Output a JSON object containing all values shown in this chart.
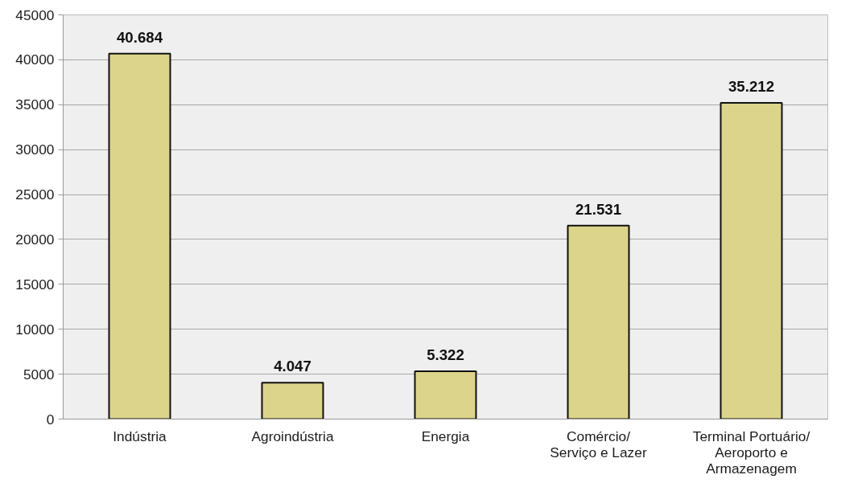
{
  "chart_data": {
    "type": "bar",
    "categories": [
      "Indústria",
      "Agroindústria",
      "Energia",
      "Comércio/\nServiço e Lazer",
      "Terminal Portuário/\nAeroporto e\nArmazenagem"
    ],
    "values": [
      40684,
      4047,
      5322,
      21531,
      35212
    ],
    "value_labels": [
      "40.684",
      "4.047",
      "5.322",
      "21.531",
      "35.212"
    ],
    "color": "#dcd48a",
    "ylim": [
      0,
      45000
    ],
    "yticks": [
      0,
      5000,
      10000,
      15000,
      20000,
      25000,
      30000,
      35000,
      40000,
      45000
    ],
    "grid": "y"
  }
}
